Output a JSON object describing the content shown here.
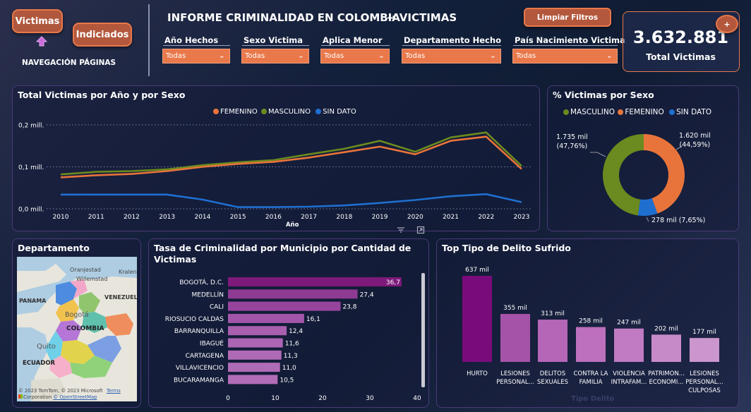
{
  "nav": {
    "victimas_label": "Victimas",
    "indiciados_label": "Indiciados",
    "nav_label": "NAVEGACIÓN PÁGINAS"
  },
  "header": {
    "title": "INFORME CRIMINALIDAD EN COLOMBIA",
    "subtitle": "→ VICTIMAS",
    "clear_filters": "Limpiar Filtros"
  },
  "filters": [
    {
      "label": "Año Hechos",
      "value": "Todas"
    },
    {
      "label": "Sexo Victima",
      "value": "Todas"
    },
    {
      "label": "Aplica Menor",
      "value": "Todas"
    },
    {
      "label": "Departamento Hecho",
      "value": "Todas"
    },
    {
      "label": "País Nacimiento Victima",
      "value": "Todas"
    }
  ],
  "kpi": {
    "value": "3.632.881",
    "label": "Total Victimas",
    "plus": "+"
  },
  "colors": {
    "femenino": "#e9743b",
    "masculino": "#6b8a1f",
    "sin_dato": "#1f6fd0",
    "accent": "#e9784a"
  },
  "line_chart": {
    "title": "Total Victimas por Año y por Sexo",
    "legend": [
      "FEMENINO",
      "MASCULINO",
      "SIN DATO"
    ],
    "y_ticks": [
      "0,2 mill.",
      "0,1 mill.",
      "0,0 mill."
    ],
    "x_label": "Año"
  },
  "donut": {
    "title": "% Victimas por Sexo",
    "legend": [
      "MASCULINO",
      "FEMENINO",
      "SIN DATO"
    ],
    "label_masc_1": "1.735 mil",
    "label_masc_2": "(47,76%)",
    "label_fem_1": "1.620 mil",
    "label_fem_2": "(44,59%)",
    "label_sin": "278 mil (7,65%)"
  },
  "map": {
    "title": "Departamento",
    "labels": {
      "oranjestad": "Oranjestad",
      "kralendijk": "Kralen",
      "willemstad": "Willemstad",
      "panama": "PANAMA",
      "venezuela": "VENEZUELA",
      "bogota": "Bogotá",
      "colombia": "COLOMBIA",
      "quito": "Quito",
      "ecuador": "ECUADOR"
    },
    "attribution_1": "© 2023 TomTom, © 2023 Microsoft",
    "attribution_terms": "Terms",
    "attribution_2": "Corporation",
    "attribution_osm": "© OpenStreetMap"
  },
  "hbar": {
    "title_1": "Tasa de Criminalidad por Municipio por Cantidad de",
    "title_2": "Victimas",
    "x_ticks": [
      "0",
      "10",
      "20",
      "30",
      "40"
    ]
  },
  "vbar": {
    "title": "Top Tipo de Delito Sufrido",
    "x_axis_title": "Tipo Delito"
  },
  "chart_data": [
    {
      "type": "line",
      "title": "Total Victimas por Año y por Sexo",
      "xlabel": "Año",
      "ylabel": "",
      "x": [
        2010,
        2011,
        2012,
        2013,
        2014,
        2015,
        2016,
        2017,
        2018,
        2019,
        2020,
        2021,
        2022,
        2023
      ],
      "ylim": [
        0,
        200000
      ],
      "series": [
        {
          "name": "FEMENINO",
          "values": [
            75000,
            80000,
            83000,
            90000,
            100000,
            107000,
            112000,
            122000,
            135000,
            148000,
            130000,
            162000,
            172000,
            95000
          ]
        },
        {
          "name": "MASCULINO",
          "values": [
            82000,
            88000,
            90000,
            94000,
            104000,
            111000,
            116000,
            130000,
            143000,
            162000,
            136000,
            170000,
            182000,
            102000
          ]
        },
        {
          "name": "SIN DATO",
          "values": [
            34000,
            34000,
            34000,
            34000,
            22000,
            4000,
            4000,
            5000,
            8000,
            14000,
            21000,
            30000,
            35000,
            16000
          ]
        }
      ]
    },
    {
      "type": "pie",
      "title": "% Victimas por Sexo",
      "categories": [
        "MASCULINO",
        "FEMENINO",
        "SIN DATO"
      ],
      "values": [
        47.76,
        44.59,
        7.65
      ]
    },
    {
      "type": "bar",
      "orientation": "horizontal",
      "title": "Tasa de Criminalidad por Municipio por Cantidad de Victimas",
      "categories": [
        "BOGOTÁ, D.C.",
        "MEDELLÍN",
        "CALI",
        "RIOSUCIO CALDAS",
        "BARRANQUILLA",
        "IBAGUÉ",
        "CARTAGENA",
        "VILLAVICENCIO",
        "BUCARAMANGA"
      ],
      "values": [
        36.7,
        27.4,
        23.8,
        16.1,
        12.4,
        11.6,
        11.3,
        11.0,
        10.5
      ],
      "value_labels": [
        "36,7",
        "27,4",
        "23,8",
        "16,1",
        "12,4",
        "11,6",
        "11,3",
        "11,0",
        "10,5"
      ],
      "xlim": [
        0,
        40
      ]
    },
    {
      "type": "bar",
      "title": "Top Tipo de Delito Sufrido",
      "xlabel": "Tipo Delito",
      "categories": [
        [
          "HURTO"
        ],
        [
          "LESIONES",
          "PERSONAL..."
        ],
        [
          "DELITOS",
          "SEXUALES"
        ],
        [
          "CONTRA LA",
          "FAMILIA"
        ],
        [
          "VIOLENCIA",
          "INTRAFAM..."
        ],
        [
          "PATRIMON...",
          "ECONOMI..."
        ],
        [
          "LESIONES",
          "PERSONAL...",
          "CULPOSAS"
        ]
      ],
      "values": [
        637,
        355,
        313,
        258,
        247,
        202,
        177
      ],
      "value_labels": [
        "637 mil",
        "355 mil",
        "313 mil",
        "258 mil",
        "247 mil",
        "202 mil",
        "177 mil"
      ]
    }
  ]
}
